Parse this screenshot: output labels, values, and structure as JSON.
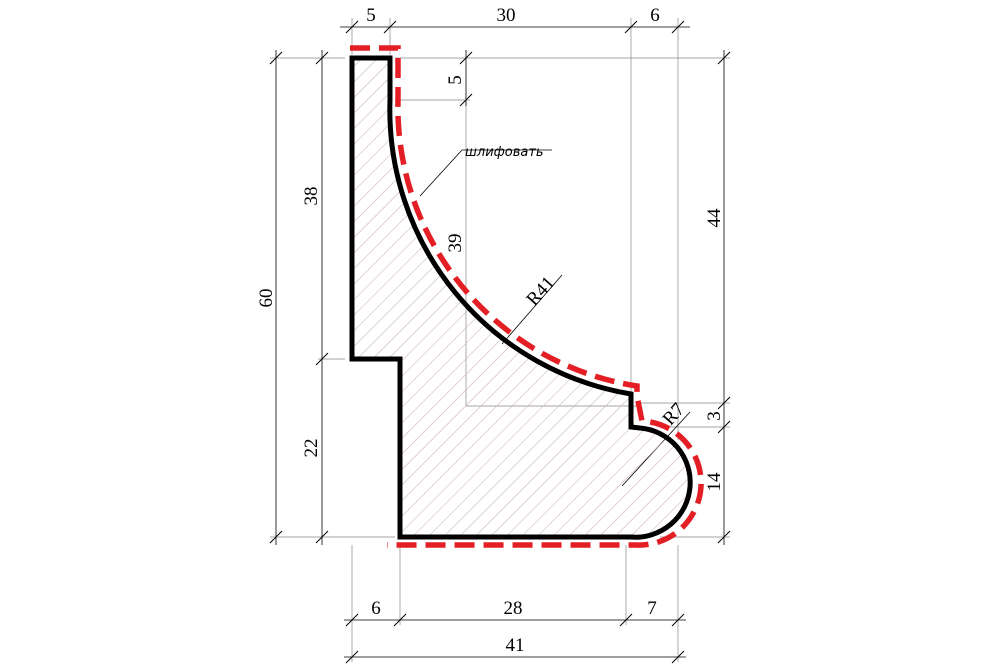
{
  "drawing": {
    "dimensions": {
      "top_left_width": "5",
      "top_mid_width": "30",
      "top_right_width": "6",
      "inner_top_height": "5",
      "left_upper_height": "38",
      "total_height": "60",
      "left_lower_height": "22",
      "curve_height": "39",
      "right_upper_height": "44",
      "step_height": "3",
      "bead_height": "14",
      "bottom_left_width": "6",
      "bottom_mid_width": "28",
      "bottom_right_width": "7",
      "total_width": "41"
    },
    "radii": {
      "large_curve": "R41",
      "small_curve": "R7"
    },
    "note": "шлифовать",
    "colors": {
      "profile_outline": "#000000",
      "sanding_line": "#e31e24",
      "hatch": "#c9a9a9"
    }
  }
}
